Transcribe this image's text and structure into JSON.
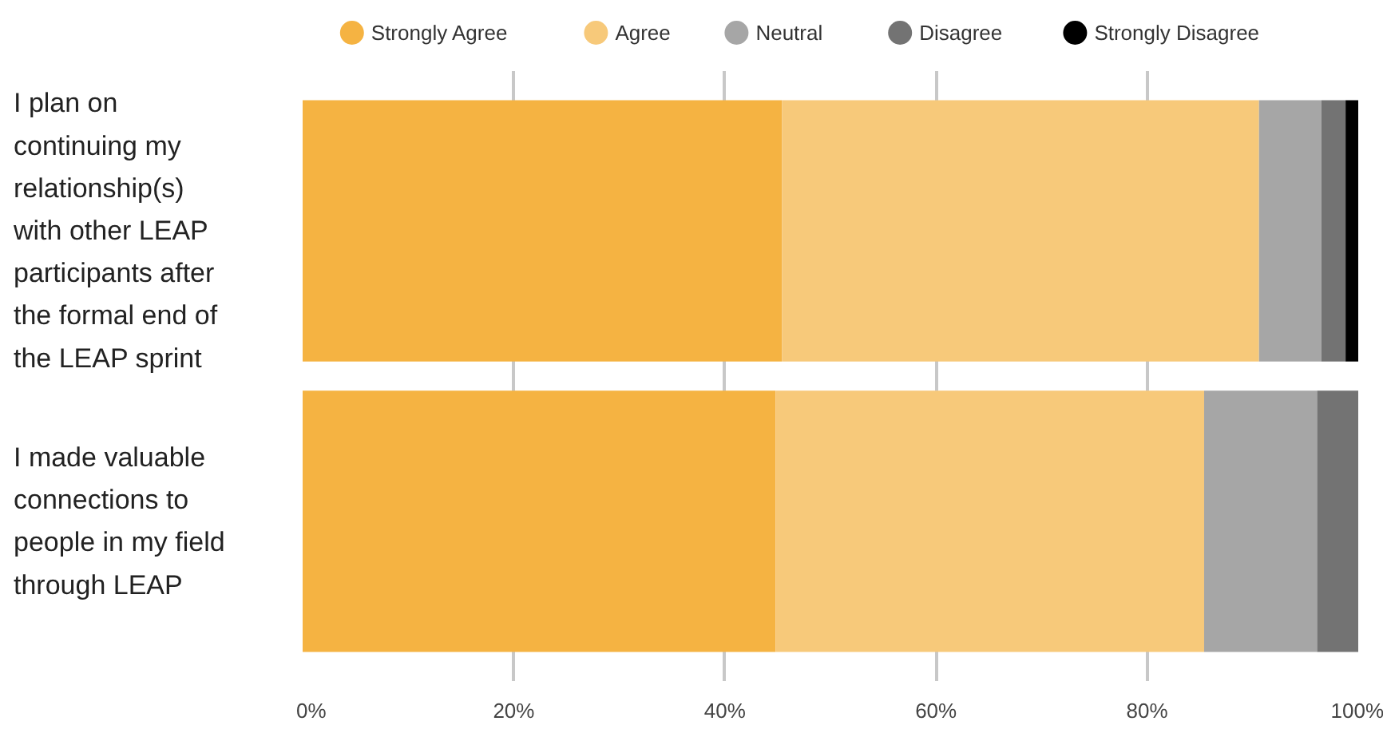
{
  "chart_data": {
    "type": "bar",
    "orientation": "horizontal",
    "stacked": true,
    "categories": [
      "I plan on continuing my relationship(s) with other LEAP participants after the formal end of the LEAP sprint",
      "I made valuable connections to people in my field through LEAP"
    ],
    "series": [
      {
        "name": "Strongly Agree",
        "color": "#f5b342",
        "values": [
          45.4,
          44.8
        ]
      },
      {
        "name": "Agree",
        "color": "#f7c97a",
        "values": [
          45.2,
          40.6
        ]
      },
      {
        "name": "Neutral",
        "color": "#a6a6a6",
        "values": [
          5.9,
          10.7
        ]
      },
      {
        "name": "Disagree",
        "color": "#737373",
        "values": [
          2.3,
          3.9
        ]
      },
      {
        "name": "Strongly Disagree",
        "color": "#000000",
        "values": [
          1.2,
          0
        ]
      }
    ],
    "xlim": [
      0,
      100
    ],
    "xticks": [
      {
        "value": 0,
        "label": "0%"
      },
      {
        "value": 20,
        "label": "20%"
      },
      {
        "value": 40,
        "label": "40%"
      },
      {
        "value": 60,
        "label": "60%"
      },
      {
        "value": 80,
        "label": "80%"
      },
      {
        "value": 100,
        "label": "100%"
      }
    ],
    "grid": "x",
    "legend": "top"
  }
}
